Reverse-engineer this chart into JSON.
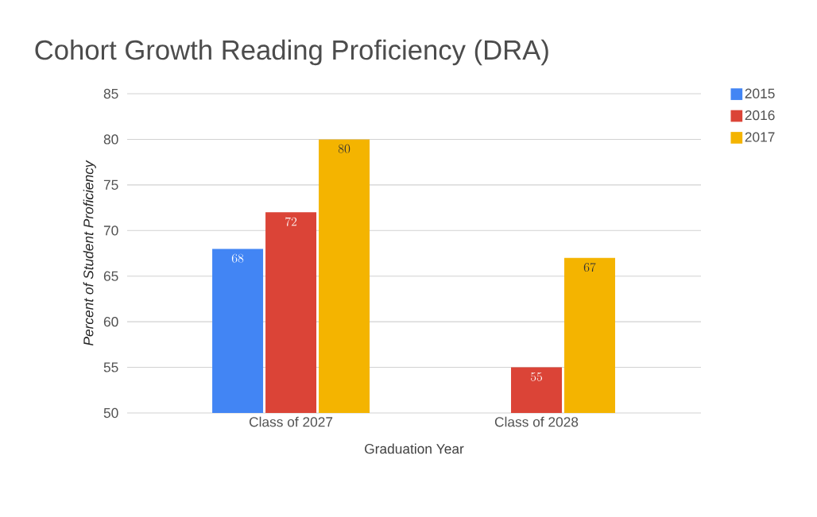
{
  "chart_data": {
    "type": "bar",
    "title": "Cohort Growth Reading Proficiency (DRA)",
    "xlabel": "Graduation Year",
    "ylabel": "Percent of Student Proficiency",
    "categories": [
      "Class of 2027",
      "Class of 2028"
    ],
    "series": [
      {
        "name": "2015",
        "color": "#4285f4",
        "values": [
          68,
          null
        ]
      },
      {
        "name": "2016",
        "color": "#db4437",
        "values": [
          72,
          55
        ]
      },
      {
        "name": "2017",
        "color": "#f4b400",
        "values": [
          80,
          67
        ]
      }
    ],
    "ylim": [
      50,
      85
    ],
    "yticks": [
      50,
      55,
      60,
      65,
      70,
      75,
      80,
      85
    ],
    "grid": "y",
    "legend": "top right",
    "data_labels": true
  }
}
